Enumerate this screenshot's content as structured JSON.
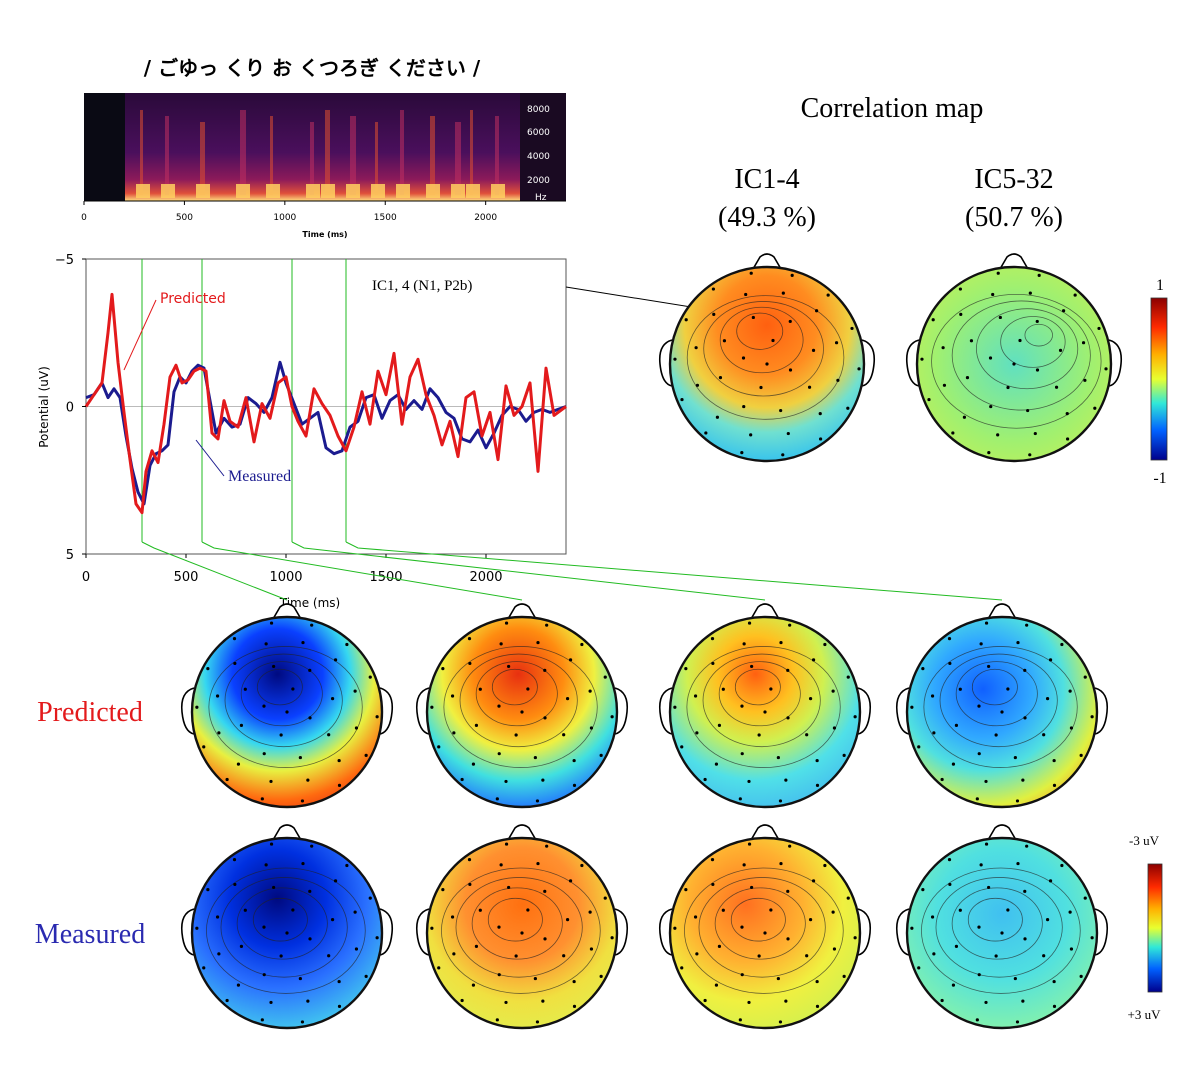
{
  "phrase": "/ ごゆっ くり お くつろぎ ください /",
  "spectrogram": {
    "x_ticks": [
      "0",
      "500",
      "1000",
      "1500",
      "2000"
    ],
    "x_label": "Time (ms)",
    "freq_ticks": [
      "8000",
      "6000",
      "4000",
      "2000"
    ],
    "freq_unit": "Hz"
  },
  "correlation_map": {
    "title": "Correlation map",
    "maps": [
      {
        "name": "IC1-4",
        "percent": "(49.3 %)"
      },
      {
        "name": "IC5-32",
        "percent": "(50.7 %)"
      }
    ],
    "colorbar": {
      "max": "1",
      "min": "-1"
    }
  },
  "annotation_ic": "IC1, 4 (N1, P2b)",
  "row_labels": {
    "predicted": "Predicted",
    "measured": "Measured"
  },
  "potential_colorbar": {
    "top": "-3 uV",
    "bottom": "+3 uV"
  },
  "colors": {
    "predicted": "#e31a1c",
    "measured": "#1b1b8f",
    "marker_line": "#22bb22"
  },
  "chart_data": {
    "type": "line",
    "xlabel": "Time (ms)",
    "ylabel": "Potential (uV)",
    "xlim": [
      0,
      2400
    ],
    "ylim": [
      -5,
      5
    ],
    "y_inverted": true,
    "x_ticks": [
      0,
      500,
      1000,
      1500,
      2000
    ],
    "y_ticks": [
      -5,
      0,
      5
    ],
    "markers_ms": [
      280,
      580,
      1030,
      1300
    ],
    "series": [
      {
        "name": "Predicted",
        "x": [
          0,
          40,
          80,
          110,
          130,
          160,
          190,
          220,
          250,
          280,
          300,
          330,
          360,
          390,
          420,
          450,
          480,
          510,
          540,
          570,
          600,
          630,
          660,
          690,
          720,
          760,
          800,
          840,
          880,
          920,
          960,
          1000,
          1030,
          1060,
          1100,
          1140,
          1180,
          1220,
          1260,
          1300,
          1340,
          1380,
          1420,
          1460,
          1500,
          1540,
          1580,
          1620,
          1660,
          1700,
          1740,
          1780,
          1820,
          1860,
          1900,
          1940,
          1980,
          2020,
          2060,
          2100,
          2140,
          2180,
          2220,
          2260,
          2300,
          2340,
          2400
        ],
        "y": [
          0,
          -0.4,
          -0.8,
          -2.5,
          -3.8,
          -1.5,
          0.2,
          1.8,
          3.3,
          3.6,
          2.2,
          1.5,
          1.9,
          0.6,
          -1,
          -1.4,
          -0.8,
          -0.9,
          -1.2,
          -1.3,
          -1.2,
          0.9,
          1.1,
          -0.2,
          0.5,
          0.7,
          -0.3,
          1.2,
          -0.1,
          0.4,
          -0.8,
          -1,
          0,
          0.5,
          1,
          -0.6,
          -0.1,
          0.3,
          1,
          1.5,
          0.7,
          -0.5,
          0.6,
          -1.2,
          -0.4,
          -1.8,
          0.6,
          -1,
          -1.6,
          -0.4,
          0.3,
          1.3,
          0.5,
          1.7,
          -0.3,
          -0.5,
          1,
          0.2,
          1.8,
          -0.7,
          0.3,
          0,
          -0.8,
          2.2,
          -1.3,
          0.3,
          0
        ]
      },
      {
        "name": "Measured",
        "x": [
          0,
          40,
          80,
          110,
          140,
          170,
          200,
          230,
          260,
          290,
          320,
          350,
          380,
          410,
          440,
          470,
          500,
          530,
          560,
          590,
          620,
          650,
          690,
          730,
          770,
          810,
          850,
          890,
          930,
          970,
          1000,
          1040,
          1080,
          1120,
          1160,
          1200,
          1240,
          1280,
          1320,
          1360,
          1400,
          1440,
          1480,
          1520,
          1560,
          1600,
          1640,
          1680,
          1720,
          1760,
          1800,
          1840,
          1880,
          1920,
          1960,
          2000,
          2040,
          2080,
          2120,
          2160,
          2200,
          2240,
          2280,
          2320,
          2360,
          2400
        ],
        "y": [
          -0.3,
          -0.4,
          -0.8,
          -0.3,
          -0.6,
          -0.3,
          1,
          2.1,
          2.9,
          3.3,
          2,
          1.6,
          1.5,
          1.3,
          -0.5,
          -1,
          -0.8,
          -1.2,
          -1.4,
          -1.3,
          -0.2,
          0.9,
          0.4,
          0.7,
          0.6,
          -0.3,
          -0.1,
          0.2,
          -0.3,
          -1.5,
          -0.8,
          -0.1,
          0.6,
          0.4,
          0.2,
          1.4,
          1.6,
          1.5,
          0.7,
          0.5,
          -0.3,
          -0.4,
          0.4,
          -0.2,
          -0.4,
          0.1,
          -0.2,
          0.1,
          -0.6,
          -0.3,
          0.2,
          0.4,
          1.1,
          1.2,
          0.8,
          1.4,
          0.9,
          0.3,
          0,
          0.1,
          0.5,
          0.2,
          0.1,
          0.2,
          0.1,
          0
        ]
      }
    ]
  }
}
